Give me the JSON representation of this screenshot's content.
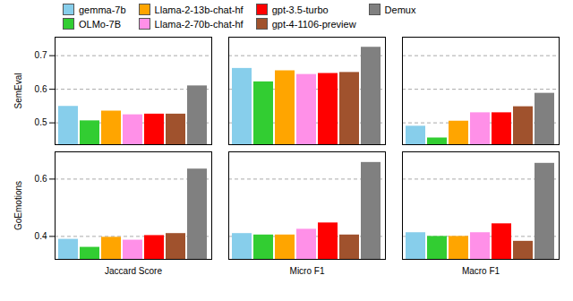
{
  "chart_data": [
    {
      "type": "bar",
      "categories": [
        "Jaccard Score",
        "Micro F1",
        "Macro F1"
      ],
      "series": [
        {
          "name": "gemma-7b",
          "color": "#87CEEB",
          "values": [
            0.549,
            0.662,
            0.49
          ]
        },
        {
          "name": "OLMo-7B",
          "color": "#32CD32",
          "values": [
            0.506,
            0.622,
            0.455
          ]
        },
        {
          "name": "Llama-2-13b-chat-hf",
          "color": "#FFA500",
          "values": [
            0.535,
            0.655,
            0.505
          ]
        },
        {
          "name": "Llama-2-70b-chat-hf",
          "color": "#FF90E8",
          "values": [
            0.524,
            0.644,
            0.53
          ]
        },
        {
          "name": "gpt-3.5-turbo",
          "color": "#FF0000",
          "values": [
            0.526,
            0.647,
            0.53
          ]
        },
        {
          "name": "gpt-4-1106-preview",
          "color": "#A0522D",
          "values": [
            0.526,
            0.65,
            0.548
          ]
        },
        {
          "name": "Demux",
          "color": "#808080",
          "values": [
            0.61,
            0.725,
            0.588
          ]
        }
      ],
      "ylabel": "SemEval",
      "ylim": [
        0.435,
        0.755
      ],
      "yticks": [
        0.5,
        0.6,
        0.7
      ],
      "grid": true,
      "legend": "top",
      "tick_labels": "y"
    },
    {
      "type": "bar",
      "categories": [
        "Jaccard Score",
        "Micro F1",
        "Macro F1"
      ],
      "series": [
        {
          "name": "gemma-7b",
          "color": "#87CEEB",
          "values": [
            0.39,
            0.41,
            0.413
          ]
        },
        {
          "name": "OLMo-7B",
          "color": "#32CD32",
          "values": [
            0.362,
            0.405,
            0.4
          ]
        },
        {
          "name": "Llama-2-13b-chat-hf",
          "color": "#FFA500",
          "values": [
            0.397,
            0.405,
            0.4
          ]
        },
        {
          "name": "Llama-2-70b-chat-hf",
          "color": "#FF90E8",
          "values": [
            0.387,
            0.425,
            0.413
          ]
        },
        {
          "name": "gpt-3.5-turbo",
          "color": "#FF0000",
          "values": [
            0.403,
            0.447,
            0.444
          ]
        },
        {
          "name": "gpt-4-1106-preview",
          "color": "#A0522D",
          "values": [
            0.41,
            0.405,
            0.383
          ]
        },
        {
          "name": "Demux",
          "color": "#808080",
          "values": [
            0.635,
            0.658,
            0.655
          ]
        }
      ],
      "ylabel": "GoEmotions",
      "ylim": [
        0.32,
        0.695
      ],
      "yticks": [
        0.4,
        0.6
      ],
      "grid": true
    }
  ]
}
